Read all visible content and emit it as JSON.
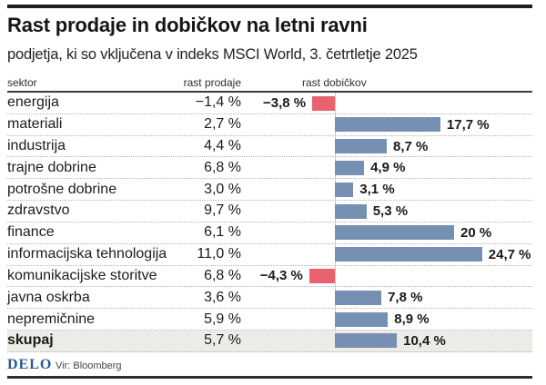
{
  "header": {
    "title": "Rast prodaje in dobičkov na letni ravni",
    "subtitle": "podjetja, ki so vključena v indeks MSCI World, 3. četrtletje 2025"
  },
  "columns": {
    "sector": "sektor",
    "sales": "rast prodaje",
    "profit": "rast dobičkov"
  },
  "rows": [
    {
      "sector": "energija",
      "sales": "−1,4 %",
      "profit": "−3,8 %",
      "profit_value": -3.8,
      "emphasis": false
    },
    {
      "sector": "materiali",
      "sales": "2,7 %",
      "profit": "17,7 %",
      "profit_value": 17.7,
      "emphasis": false
    },
    {
      "sector": "industrija",
      "sales": "4,4 %",
      "profit": "8,7 %",
      "profit_value": 8.7,
      "emphasis": false
    },
    {
      "sector": "trajne dobrine",
      "sales": "6,8 %",
      "profit": "4,9 %",
      "profit_value": 4.9,
      "emphasis": false
    },
    {
      "sector": "potrošne dobrine",
      "sales": "3,0 %",
      "profit": "3,1 %",
      "profit_value": 3.1,
      "emphasis": false
    },
    {
      "sector": "zdravstvo",
      "sales": "9,7 %",
      "profit": "5,3 %",
      "profit_value": 5.3,
      "emphasis": false
    },
    {
      "sector": "finance",
      "sales": "6,1 %",
      "profit": "20 %",
      "profit_value": 20.0,
      "emphasis": false
    },
    {
      "sector": "informacijska tehnologija",
      "sales": "11,0 %",
      "profit": "24,7 %",
      "profit_value": 24.7,
      "emphasis": false
    },
    {
      "sector": "komunikacijske storitve",
      "sales": "6,8 %",
      "profit": "−4,3 %",
      "profit_value": -4.3,
      "emphasis": false
    },
    {
      "sector": "javna oskrba",
      "sales": "3,6 %",
      "profit": "7,8 %",
      "profit_value": 7.8,
      "emphasis": false
    },
    {
      "sector": "nepremičnine",
      "sales": "5,9 %",
      "profit": "8,9 %",
      "profit_value": 8.9,
      "emphasis": false
    },
    {
      "sector": "skupaj",
      "sales": "5,7 %",
      "profit": "10,4 %",
      "profit_value": 10.4,
      "emphasis": true
    }
  ],
  "footer": {
    "logo": "DELO",
    "source": "Vir: Bloomberg"
  },
  "colors": {
    "bar_positive": "#7590b2",
    "bar_negative": "#e8636e",
    "total_row_bg": "#ecebe5",
    "logo_blue": "#2a5a8e"
  },
  "chart_data": {
    "type": "bar",
    "orientation": "horizontal",
    "title": "Rast prodaje in dobičkov na letni ravni",
    "subtitle": "podjetja, ki so vključena v indeks MSCI World, 3. četrtletje 2025",
    "unit": "%",
    "categories": [
      "energija",
      "materiali",
      "industrija",
      "trajne dobrine",
      "potrošne dobrine",
      "zdravstvo",
      "finance",
      "informacijska tehnologija",
      "komunikacijske storitve",
      "javna oskrba",
      "nepremičnine",
      "skupaj"
    ],
    "series": [
      {
        "name": "rast prodaje",
        "values": [
          -1.4,
          2.7,
          4.4,
          6.8,
          3.0,
          9.7,
          6.1,
          11.0,
          6.8,
          3.6,
          5.9,
          5.7
        ],
        "shown_as": "text"
      },
      {
        "name": "rast dobičkov",
        "values": [
          -3.8,
          17.7,
          8.7,
          4.9,
          3.1,
          5.3,
          20.0,
          24.7,
          -4.3,
          7.8,
          8.9,
          10.4
        ],
        "shown_as": "bars"
      }
    ],
    "xlim": [
      -5,
      26
    ],
    "grid": "dotted row separators only",
    "legend_position": "none",
    "source": "Vir: Bloomberg"
  }
}
